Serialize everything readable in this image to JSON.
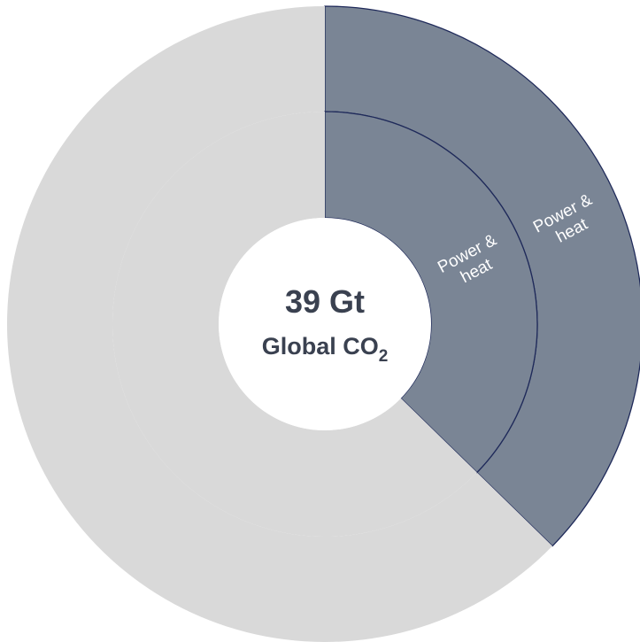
{
  "chart_data": {
    "type": "donut",
    "center": {
      "value": "39 Gt",
      "label": "Global CO",
      "label_subscript": "2"
    },
    "colors": {
      "highlight": "#7a8595",
      "rest": "#d9d9d9",
      "outline": "#1f2a5a",
      "center_text": "#3a4150"
    },
    "rings": [
      {
        "name": "inner",
        "slices": [
          {
            "label": "Power & heat",
            "label_lines": [
              "Power &",
              "heat"
            ],
            "share": 0.373,
            "highlight": true
          },
          {
            "label": "",
            "share": 0.627,
            "highlight": false
          }
        ]
      },
      {
        "name": "outer",
        "slices": [
          {
            "label": "Power & heat",
            "label_lines": [
              "Power &",
              "heat"
            ],
            "share": 0.373,
            "highlight": true
          },
          {
            "label": "",
            "share": 0.627,
            "highlight": false
          }
        ]
      }
    ]
  }
}
